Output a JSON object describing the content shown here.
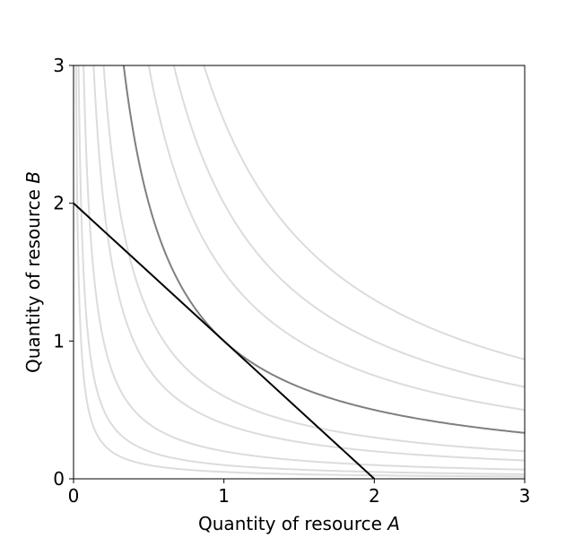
{
  "chart_data": {
    "type": "line",
    "title": "",
    "xlabel_text": "Quantity of resource ",
    "xlabel_var": "A",
    "ylabel_text": "Quantity of resource ",
    "ylabel_var": "B",
    "xlim": [
      0,
      3
    ],
    "ylim": [
      0,
      3
    ],
    "xticks": [
      0,
      1,
      2,
      3
    ],
    "yticks": [
      0,
      1,
      2,
      3
    ],
    "grid": false,
    "legend": "none",
    "indifference_curves": {
      "form": "y = k / x",
      "k_values": [
        0.05,
        0.1,
        0.2,
        0.4,
        0.6,
        1.0,
        1.5,
        2.0,
        2.6
      ],
      "highlighted_k": 1.0,
      "highlight_color": "#7f7f7f",
      "background_color": "#dcdcdc"
    },
    "budget_line": {
      "x": [
        0,
        2
      ],
      "y": [
        2,
        0
      ],
      "color": "#000000"
    }
  }
}
